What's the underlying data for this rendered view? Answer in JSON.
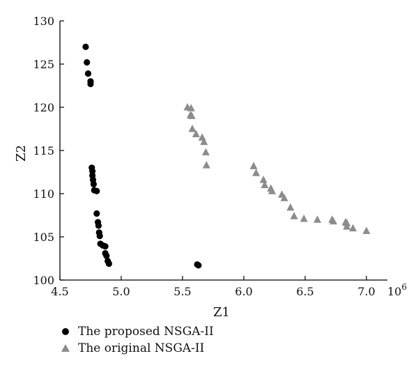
{
  "chart_data": {
    "type": "scatter",
    "xlabel": "Z1",
    "ylabel": "Z2",
    "x_exponent_label": "10",
    "x_exponent_power": "6",
    "xlim": [
      4.5,
      7.0
    ],
    "ylim": [
      100,
      130
    ],
    "x_ticks": [
      "4.5",
      "5.0",
      "5.5",
      "6.0",
      "6.5",
      "7.0"
    ],
    "y_ticks": [
      "100",
      "105",
      "110",
      "115",
      "120",
      "125",
      "130"
    ],
    "grid": false,
    "legend_position": "bottom-left",
    "series": [
      {
        "name": "The proposed NSGA-II",
        "marker": "circle",
        "color": "#000000",
        "points": [
          [
            4.71,
            127.0
          ],
          [
            4.72,
            125.2
          ],
          [
            4.73,
            123.9
          ],
          [
            4.75,
            123.0
          ],
          [
            4.75,
            122.7
          ],
          [
            4.76,
            113.0
          ],
          [
            4.765,
            112.6
          ],
          [
            4.765,
            112.1
          ],
          [
            4.77,
            111.6
          ],
          [
            4.775,
            111.1
          ],
          [
            4.78,
            110.4
          ],
          [
            4.8,
            110.3
          ],
          [
            4.8,
            107.7
          ],
          [
            4.81,
            106.7
          ],
          [
            4.815,
            106.3
          ],
          [
            4.82,
            105.5
          ],
          [
            4.825,
            105.1
          ],
          [
            4.83,
            104.2
          ],
          [
            4.85,
            104.0
          ],
          [
            4.87,
            103.9
          ],
          [
            4.87,
            103.1
          ],
          [
            4.88,
            102.8
          ],
          [
            4.89,
            102.2
          ],
          [
            4.9,
            101.9
          ],
          [
            5.62,
            101.8
          ],
          [
            5.63,
            101.7
          ]
        ]
      },
      {
        "name": "The original NSGA-II",
        "marker": "triangle",
        "color": "#8c8c8c",
        "points": [
          [
            5.54,
            120.0
          ],
          [
            5.57,
            119.9
          ],
          [
            5.565,
            119.1
          ],
          [
            5.575,
            119.0
          ],
          [
            5.58,
            117.5
          ],
          [
            5.61,
            116.9
          ],
          [
            5.66,
            116.5
          ],
          [
            5.675,
            116.0
          ],
          [
            5.69,
            114.8
          ],
          [
            5.695,
            113.3
          ],
          [
            6.08,
            113.2
          ],
          [
            6.1,
            112.4
          ],
          [
            6.16,
            111.6
          ],
          [
            6.17,
            111.0
          ],
          [
            6.22,
            110.6
          ],
          [
            6.23,
            110.3
          ],
          [
            6.31,
            109.9
          ],
          [
            6.33,
            109.5
          ],
          [
            6.38,
            108.4
          ],
          [
            6.41,
            107.4
          ],
          [
            6.49,
            107.1
          ],
          [
            6.6,
            107.0
          ],
          [
            6.72,
            107.0
          ],
          [
            6.73,
            106.8
          ],
          [
            6.83,
            106.7
          ],
          [
            6.84,
            106.6
          ],
          [
            6.84,
            106.2
          ],
          [
            6.89,
            106.0
          ],
          [
            7.0,
            105.7
          ]
        ]
      }
    ]
  }
}
